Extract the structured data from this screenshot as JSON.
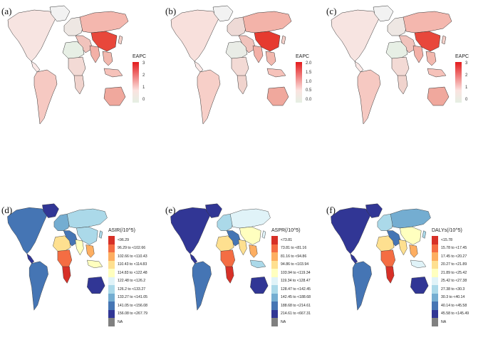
{
  "panels": [
    {
      "label": "(a)",
      "legend_title": "EAPC",
      "kind": "gradient",
      "ticks": [
        "3",
        "2",
        "1",
        "0"
      ]
    },
    {
      "label": "(b)",
      "legend_title": "EAPC",
      "kind": "gradient",
      "ticks": [
        "2.0",
        "1.5",
        "1.0",
        "0.5",
        "0.0"
      ]
    },
    {
      "label": "(c)",
      "legend_title": "EAPC",
      "kind": "gradient",
      "ticks": [
        "3",
        "2",
        "1",
        "0"
      ]
    },
    {
      "label": "(d)",
      "legend_title": "ASIR(/10^5)",
      "kind": "classes",
      "classes": [
        "<96.29",
        "96.29 to <102.66",
        "102.66 to <110.43",
        "110.43 to <114.83",
        "114.83 to <122.48",
        "122.48 to <126.2",
        "126.2 to <133.27",
        "133.27 to <141.05",
        "141.05 to <156.08",
        "156.08 to <267.79",
        "NA"
      ]
    },
    {
      "label": "(e)",
      "legend_title": "ASPR(/10^5)",
      "kind": "classes",
      "classes": [
        "<73.81",
        "73.81 to <81.16",
        "81.16 to <94.86",
        "94.86 to <103.94",
        "103.94 to <119.34",
        "119.34 to <128.47",
        "128.47 to <142.45",
        "142.45 to <188.68",
        "188.68 to <214.61",
        "214.61 to <667.31",
        "NA"
      ]
    },
    {
      "label": "(f)",
      "legend_title": "DALYs(/10^5)",
      "kind": "classes",
      "classes": [
        "<15.78",
        "15.78 to <17.45",
        "17.45 to <20.27",
        "20.27 to <21.89",
        "21.89 to <25.42",
        "25.42 to <27.38",
        "27.38 to <30.3",
        "30.3 to <40.14",
        "40.14 to <45.58",
        "45.58 to <145.49",
        "NA"
      ]
    }
  ],
  "colors": {
    "class_palette": [
      "#d73027",
      "#f46d43",
      "#fdae61",
      "#fee090",
      "#ffffbf",
      "#e0f3f8",
      "#abd9e9",
      "#74add1",
      "#4575b4",
      "#313695",
      "#808080"
    ],
    "gradient_high": "#e41a1c",
    "gradient_mid": "#fbe3e0",
    "gradient_low": "#e5efe3"
  }
}
